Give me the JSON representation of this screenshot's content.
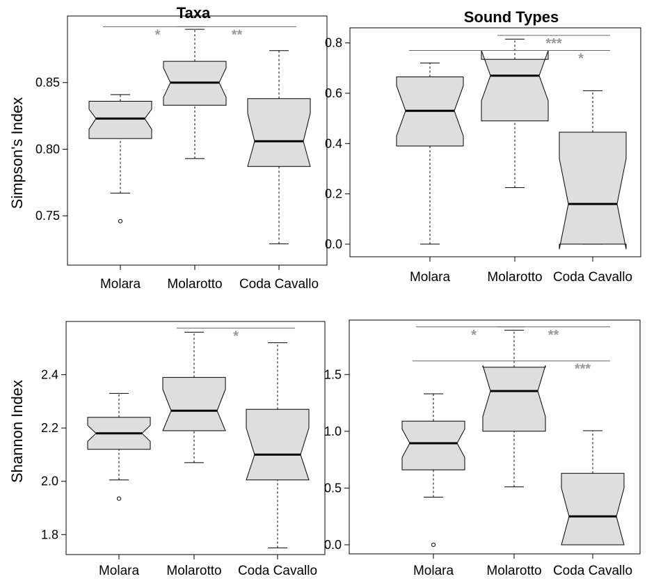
{
  "colors": {
    "box_fill": "#dedede",
    "significance": "#999999",
    "axis": "#000000"
  },
  "column_titles": [
    "Taxa",
    "Sound Types"
  ],
  "row_ylabels": [
    "Simpson's Index",
    "Shannon Index"
  ],
  "chart_data": [
    {
      "type": "boxplot",
      "title": "Taxa",
      "ylabel": "Simpson's Index",
      "categories": [
        "Molara",
        "Molarotto",
        "Coda Cavallo"
      ],
      "yticks": [
        0.75,
        0.8,
        0.85
      ],
      "ylim": [
        0.713,
        0.9
      ],
      "notched": true,
      "boxes": [
        {
          "whisker_low": 0.767,
          "q1": 0.808,
          "notch_low": 0.815,
          "median": 0.823,
          "notch_high": 0.83,
          "q3": 0.836,
          "whisker_high": 0.841,
          "outliers": [
            0.746
          ]
        },
        {
          "whisker_low": 0.793,
          "q1": 0.833,
          "notch_low": 0.839,
          "median": 0.85,
          "notch_high": 0.861,
          "q3": 0.866,
          "whisker_high": 0.89,
          "outliers": []
        },
        {
          "whisker_low": 0.729,
          "q1": 0.787,
          "notch_low": 0.787,
          "median": 0.806,
          "notch_high": 0.827,
          "q3": 0.838,
          "whisker_high": 0.874,
          "outliers": []
        }
      ],
      "significance": [
        {
          "from": 0,
          "to": 1,
          "y": 0.892,
          "label": "*"
        },
        {
          "from": 1,
          "to": 2,
          "y": 0.892,
          "label": "**"
        }
      ]
    },
    {
      "type": "boxplot",
      "title": "Sound Types",
      "ylabel": "",
      "categories": [
        "Molara",
        "Molarotto",
        "Coda Cavallo"
      ],
      "yticks": [
        0.0,
        0.2,
        0.4,
        0.6,
        0.8
      ],
      "ylim": [
        -0.05,
        0.86
      ],
      "notched": true,
      "boxes": [
        {
          "whisker_low": 0.0,
          "q1": 0.39,
          "notch_low": 0.43,
          "median": 0.53,
          "notch_high": 0.63,
          "q3": 0.665,
          "whisker_high": 0.72,
          "outliers": []
        },
        {
          "whisker_low": 0.225,
          "q1": 0.49,
          "notch_low": 0.57,
          "median": 0.67,
          "notch_high": 0.77,
          "q3": 0.735,
          "whisker_high": 0.815,
          "outliers": []
        },
        {
          "whisker_low": 0.0,
          "q1": 0.0,
          "notch_low": -0.02,
          "median": 0.16,
          "notch_high": 0.34,
          "q3": 0.445,
          "whisker_high": 0.61,
          "outliers": []
        }
      ],
      "significance": [
        {
          "from": 1,
          "to": 2,
          "y": 0.83,
          "label": "***"
        },
        {
          "from": 0,
          "to": 2,
          "y": 0.77,
          "label": "*"
        }
      ]
    },
    {
      "type": "boxplot",
      "title": "",
      "ylabel": "Shannon Index",
      "categories": [
        "Molara",
        "Molarotto",
        "Coda Cavallo"
      ],
      "yticks": [
        1.8,
        2.0,
        2.2,
        2.4
      ],
      "ylim": [
        1.725,
        2.6
      ],
      "notched": true,
      "boxes": [
        {
          "whisker_low": 2.005,
          "q1": 2.12,
          "notch_low": 2.15,
          "median": 2.18,
          "notch_high": 2.21,
          "q3": 2.24,
          "whisker_high": 2.33,
          "outliers": [
            1.935
          ]
        },
        {
          "whisker_low": 2.07,
          "q1": 2.19,
          "notch_low": 2.19,
          "median": 2.265,
          "notch_high": 2.345,
          "q3": 2.39,
          "whisker_high": 2.56,
          "outliers": []
        },
        {
          "whisker_low": 1.75,
          "q1": 2.005,
          "notch_low": 2.005,
          "median": 2.1,
          "notch_high": 2.2,
          "q3": 2.27,
          "whisker_high": 2.52,
          "outliers": []
        }
      ],
      "significance": [
        {
          "from": 1,
          "to": 2,
          "y": 2.575,
          "label": "*"
        }
      ]
    },
    {
      "type": "boxplot",
      "title": "",
      "ylabel": "",
      "categories": [
        "Molara",
        "Molarotto",
        "Coda Cavallo"
      ],
      "yticks": [
        0.0,
        0.5,
        1.0,
        1.5
      ],
      "ylim": [
        -0.08,
        1.98
      ],
      "notched": true,
      "boxes": [
        {
          "whisker_low": 0.42,
          "q1": 0.66,
          "notch_low": 0.77,
          "median": 0.895,
          "notch_high": 1.02,
          "q3": 1.09,
          "whisker_high": 1.33,
          "outliers": [
            0.0
          ]
        },
        {
          "whisker_low": 0.51,
          "q1": 1.0,
          "notch_low": 1.13,
          "median": 1.355,
          "notch_high": 1.58,
          "q3": 1.565,
          "whisker_high": 1.89,
          "outliers": []
        },
        {
          "whisker_low": 0.0,
          "q1": 0.0,
          "notch_low": 0.0,
          "median": 0.25,
          "notch_high": 0.5,
          "q3": 0.63,
          "whisker_high": 1.005,
          "outliers": []
        }
      ],
      "significance": [
        {
          "from": 0,
          "to": 1,
          "y": 1.92,
          "label": "*"
        },
        {
          "from": 1,
          "to": 2,
          "y": 1.92,
          "label": "**"
        },
        {
          "from": 0,
          "to": 2,
          "y": 1.62,
          "label": "***"
        }
      ]
    }
  ]
}
